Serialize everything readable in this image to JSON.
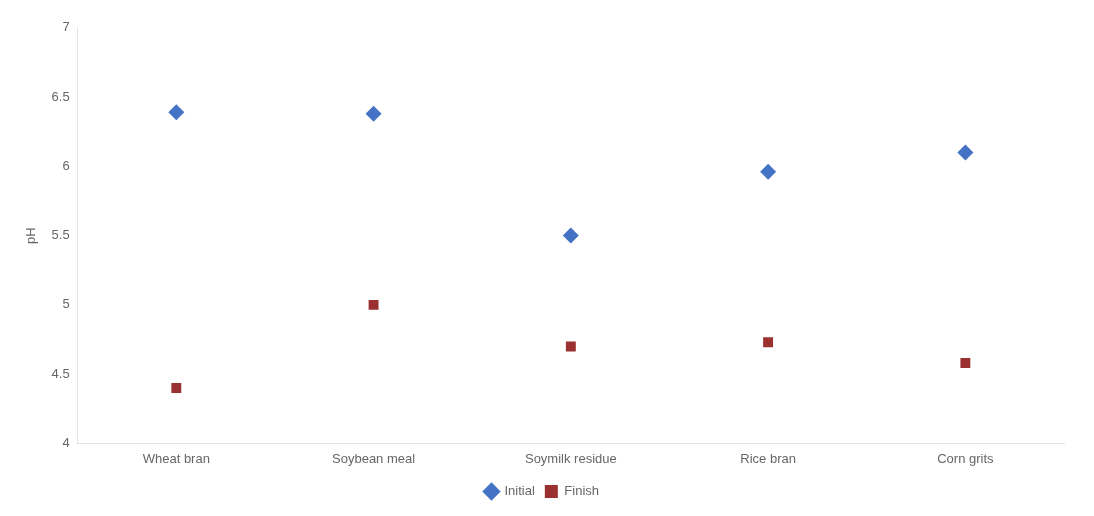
{
  "chart_data": {
    "type": "scatter",
    "categories": [
      "Wheat bran",
      "Soybean meal",
      "Soymilk residue",
      "Rice bran",
      "Corn grits"
    ],
    "series": [
      {
        "name": "Initial",
        "color": "#4472c4",
        "marker": "diamond",
        "values": [
          6.39,
          6.38,
          5.5,
          5.96,
          6.1
        ]
      },
      {
        "name": "Finish",
        "color": "#9b3030",
        "marker": "square",
        "values": [
          4.4,
          5.0,
          4.7,
          4.73,
          4.58
        ]
      }
    ],
    "ylabel": "pH",
    "ylim": [
      4.0,
      7.0
    ],
    "yticks": [
      4.0,
      4.5,
      5.0,
      5.5,
      6.0,
      6.5,
      7.0
    ],
    "grid": false,
    "legend": "bottom"
  }
}
